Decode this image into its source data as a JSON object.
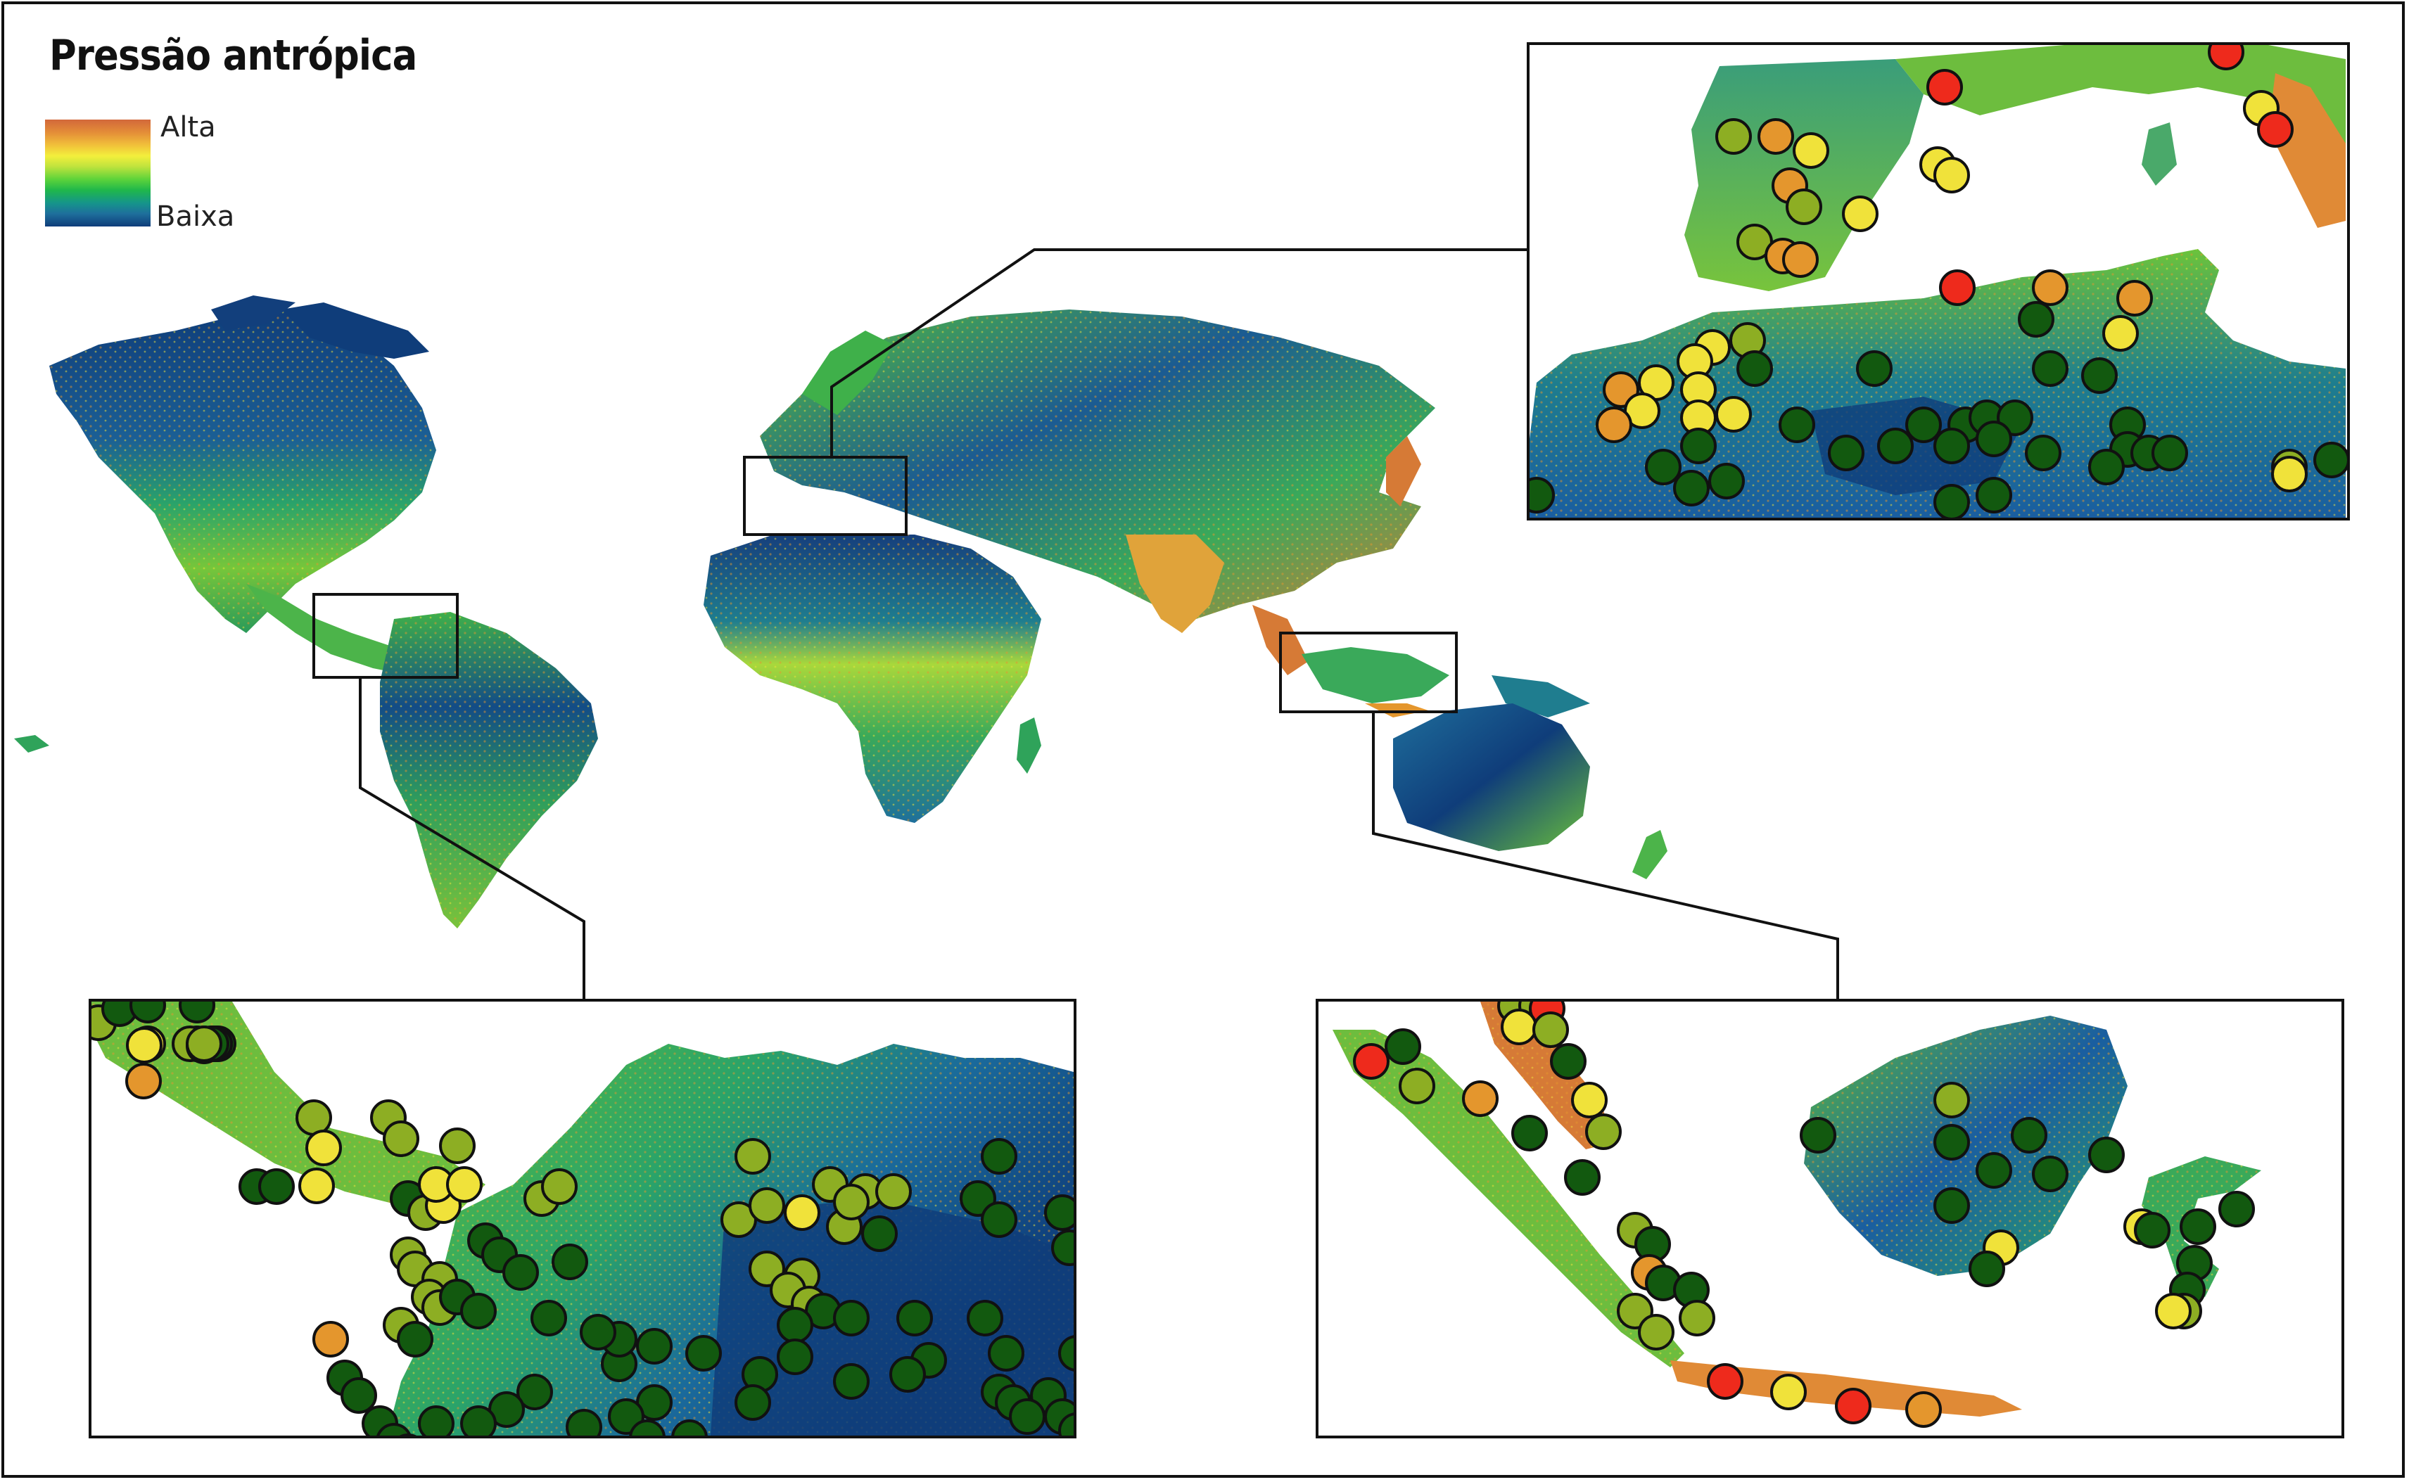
{
  "title": "Pressão antrópica",
  "legend": {
    "high_label": "Alta",
    "low_label": "Baixa"
  },
  "colors": {
    "pressure_very_low": "#0f3d7a",
    "pressure_low": "#1e6f9c",
    "pressure_midlow": "#1fa86a",
    "pressure_mid": "#63cf3b",
    "pressure_midhigh": "#f1e83c",
    "pressure_high": "#e48d38",
    "pressure_very_high": "#c85a35",
    "point_red": "#ee2a1c",
    "point_orange": "#e4962d",
    "point_yellow": "#f0e23a",
    "point_lightgreen": "#8dae23",
    "point_darkgreen": "#12590f"
  },
  "insets": [
    {
      "region": "Mediterranean (Iberia / North Africa)"
    },
    {
      "region": "Central America / northern South America"
    },
    {
      "region": "Maritime Southeast Asia (Sumatra / Borneo / Java)"
    }
  ]
}
